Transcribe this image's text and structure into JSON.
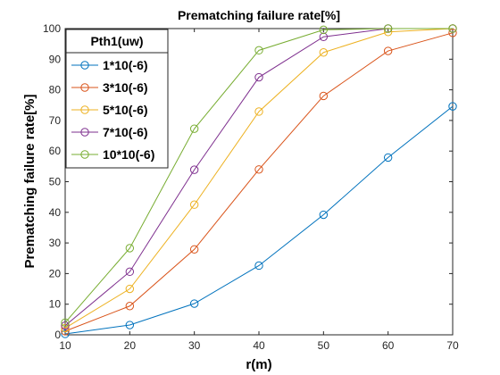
{
  "chart_data": {
    "type": "line",
    "title": "Prematching failure rate[%]",
    "xlabel": "r(m)",
    "ylabel": "Prematching failure rate[%]",
    "xlim": [
      10,
      70
    ],
    "ylim": [
      0,
      100
    ],
    "xticks": [
      10,
      20,
      30,
      40,
      50,
      60,
      70
    ],
    "yticks": [
      0,
      10,
      20,
      30,
      40,
      50,
      60,
      70,
      80,
      90,
      100
    ],
    "grid": false,
    "legend_title": "Pth1(uw)",
    "legend_position": "top-left",
    "x": [
      10,
      20,
      30,
      40,
      50,
      60,
      70
    ],
    "series": [
      {
        "name": "1*10(-6)",
        "color": "#0072BD",
        "values": [
          0.3,
          3.2,
          10.2,
          22.6,
          39.2,
          57.9,
          74.6
        ]
      },
      {
        "name": "3*10(-6)",
        "color": "#D95319",
        "values": [
          1.2,
          9.4,
          27.9,
          54.0,
          78.0,
          92.7,
          98.6
        ]
      },
      {
        "name": "5*10(-6)",
        "color": "#EDB120",
        "values": [
          2.2,
          15.0,
          42.5,
          72.9,
          92.2,
          98.9,
          100.0
        ]
      },
      {
        "name": "7*10(-6)",
        "color": "#7E2F8E",
        "values": [
          3.0,
          20.6,
          53.9,
          84.1,
          97.3,
          100.0,
          100.0
        ]
      },
      {
        "name": "10*10(-6)",
        "color": "#77AC30",
        "values": [
          4.0,
          28.3,
          67.3,
          92.9,
          99.6,
          100.0,
          100.0
        ]
      }
    ]
  }
}
